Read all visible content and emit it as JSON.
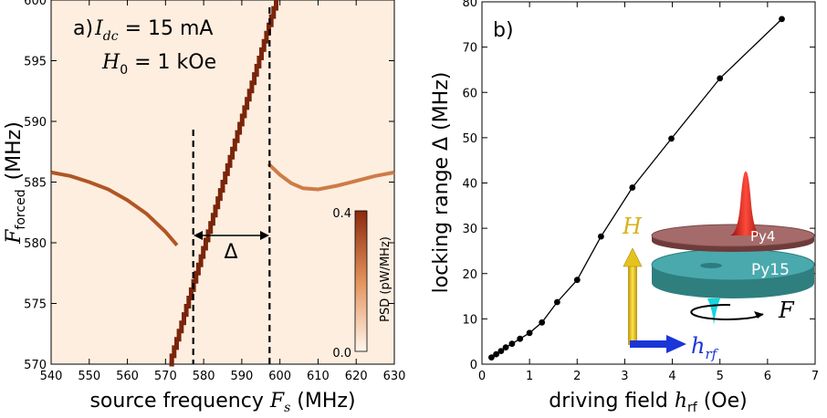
{
  "chart_data": [
    {
      "type": "heatmap",
      "panel_label": "a)",
      "annotation_lines": [
        "I",
        "dc",
        " = 15 mA",
        "H",
        "0",
        " = 1 kOe"
      ],
      "xlabel": "source frequency ",
      "xlabel_math": "F",
      "xlabel_sub": "s",
      "xlabel_unit": " (MHz)",
      "ylabel_math": "F",
      "ylabel_sub": "forced",
      "ylabel_unit": "(MHz)",
      "xlim": [
        540,
        630
      ],
      "ylim": [
        570,
        600
      ],
      "xticks": [
        "540",
        "550",
        "560",
        "570",
        "580",
        "590",
        "600",
        "610",
        "620",
        "630"
      ],
      "yticks": [
        "570",
        "575",
        "580",
        "585",
        "590",
        "595",
        "600"
      ],
      "locking_range_label": "Δ",
      "locking_range_bounds_mhz": [
        575,
        595
      ],
      "colorbar_label": "PSD (pW/MHz)",
      "colorbar_ticks": [
        "0.0",
        "0.4"
      ],
      "colorbar_range": [
        0.0,
        0.4
      ],
      "free_branch": {
        "left_x": [
          540,
          545,
          550,
          555,
          560,
          565,
          570,
          573
        ],
        "left_y": [
          585.8,
          585.5,
          585.0,
          584.4,
          583.5,
          582.4,
          580.9,
          579.8
        ],
        "right_x": [
          597,
          600,
          603,
          606,
          610,
          615,
          620,
          625,
          630
        ],
        "right_y": [
          586.5,
          585.6,
          584.9,
          584.5,
          584.4,
          584.7,
          585.1,
          585.5,
          585.8
        ]
      },
      "locked_line": {
        "x": [
          571,
          599
        ],
        "y": [
          570,
          600
        ]
      }
    },
    {
      "type": "line",
      "panel_label": "b)",
      "xlabel": "driving field ",
      "xlabel_math": "h",
      "xlabel_sub": "rf",
      "xlabel_unit": " (Oe)",
      "ylabel": "locking range Δ (MHz)",
      "xlim": [
        0,
        7
      ],
      "ylim": [
        0,
        80
      ],
      "xticks": [
        "0",
        "1",
        "2",
        "3",
        "4",
        "5",
        "6",
        "7"
      ],
      "yticks": [
        "0",
        "10",
        "20",
        "30",
        "40",
        "50",
        "60",
        "70",
        "80"
      ],
      "x": [
        0.2,
        0.3,
        0.4,
        0.5,
        0.63,
        0.8,
        1.0,
        1.26,
        1.58,
        2.0,
        2.5,
        3.16,
        3.98,
        5.0,
        6.3
      ],
      "y": [
        1.5,
        2.2,
        2.9,
        3.7,
        4.5,
        5.6,
        6.9,
        9.2,
        13.7,
        18.6,
        28.2,
        39.0,
        49.8,
        63.1,
        76.2
      ],
      "inset": {
        "field_label": "H",
        "rf_label": "h",
        "rf_sub": "rf",
        "top_layer": "Py4",
        "bottom_layer": "Py15",
        "force_label": "F"
      }
    }
  ]
}
